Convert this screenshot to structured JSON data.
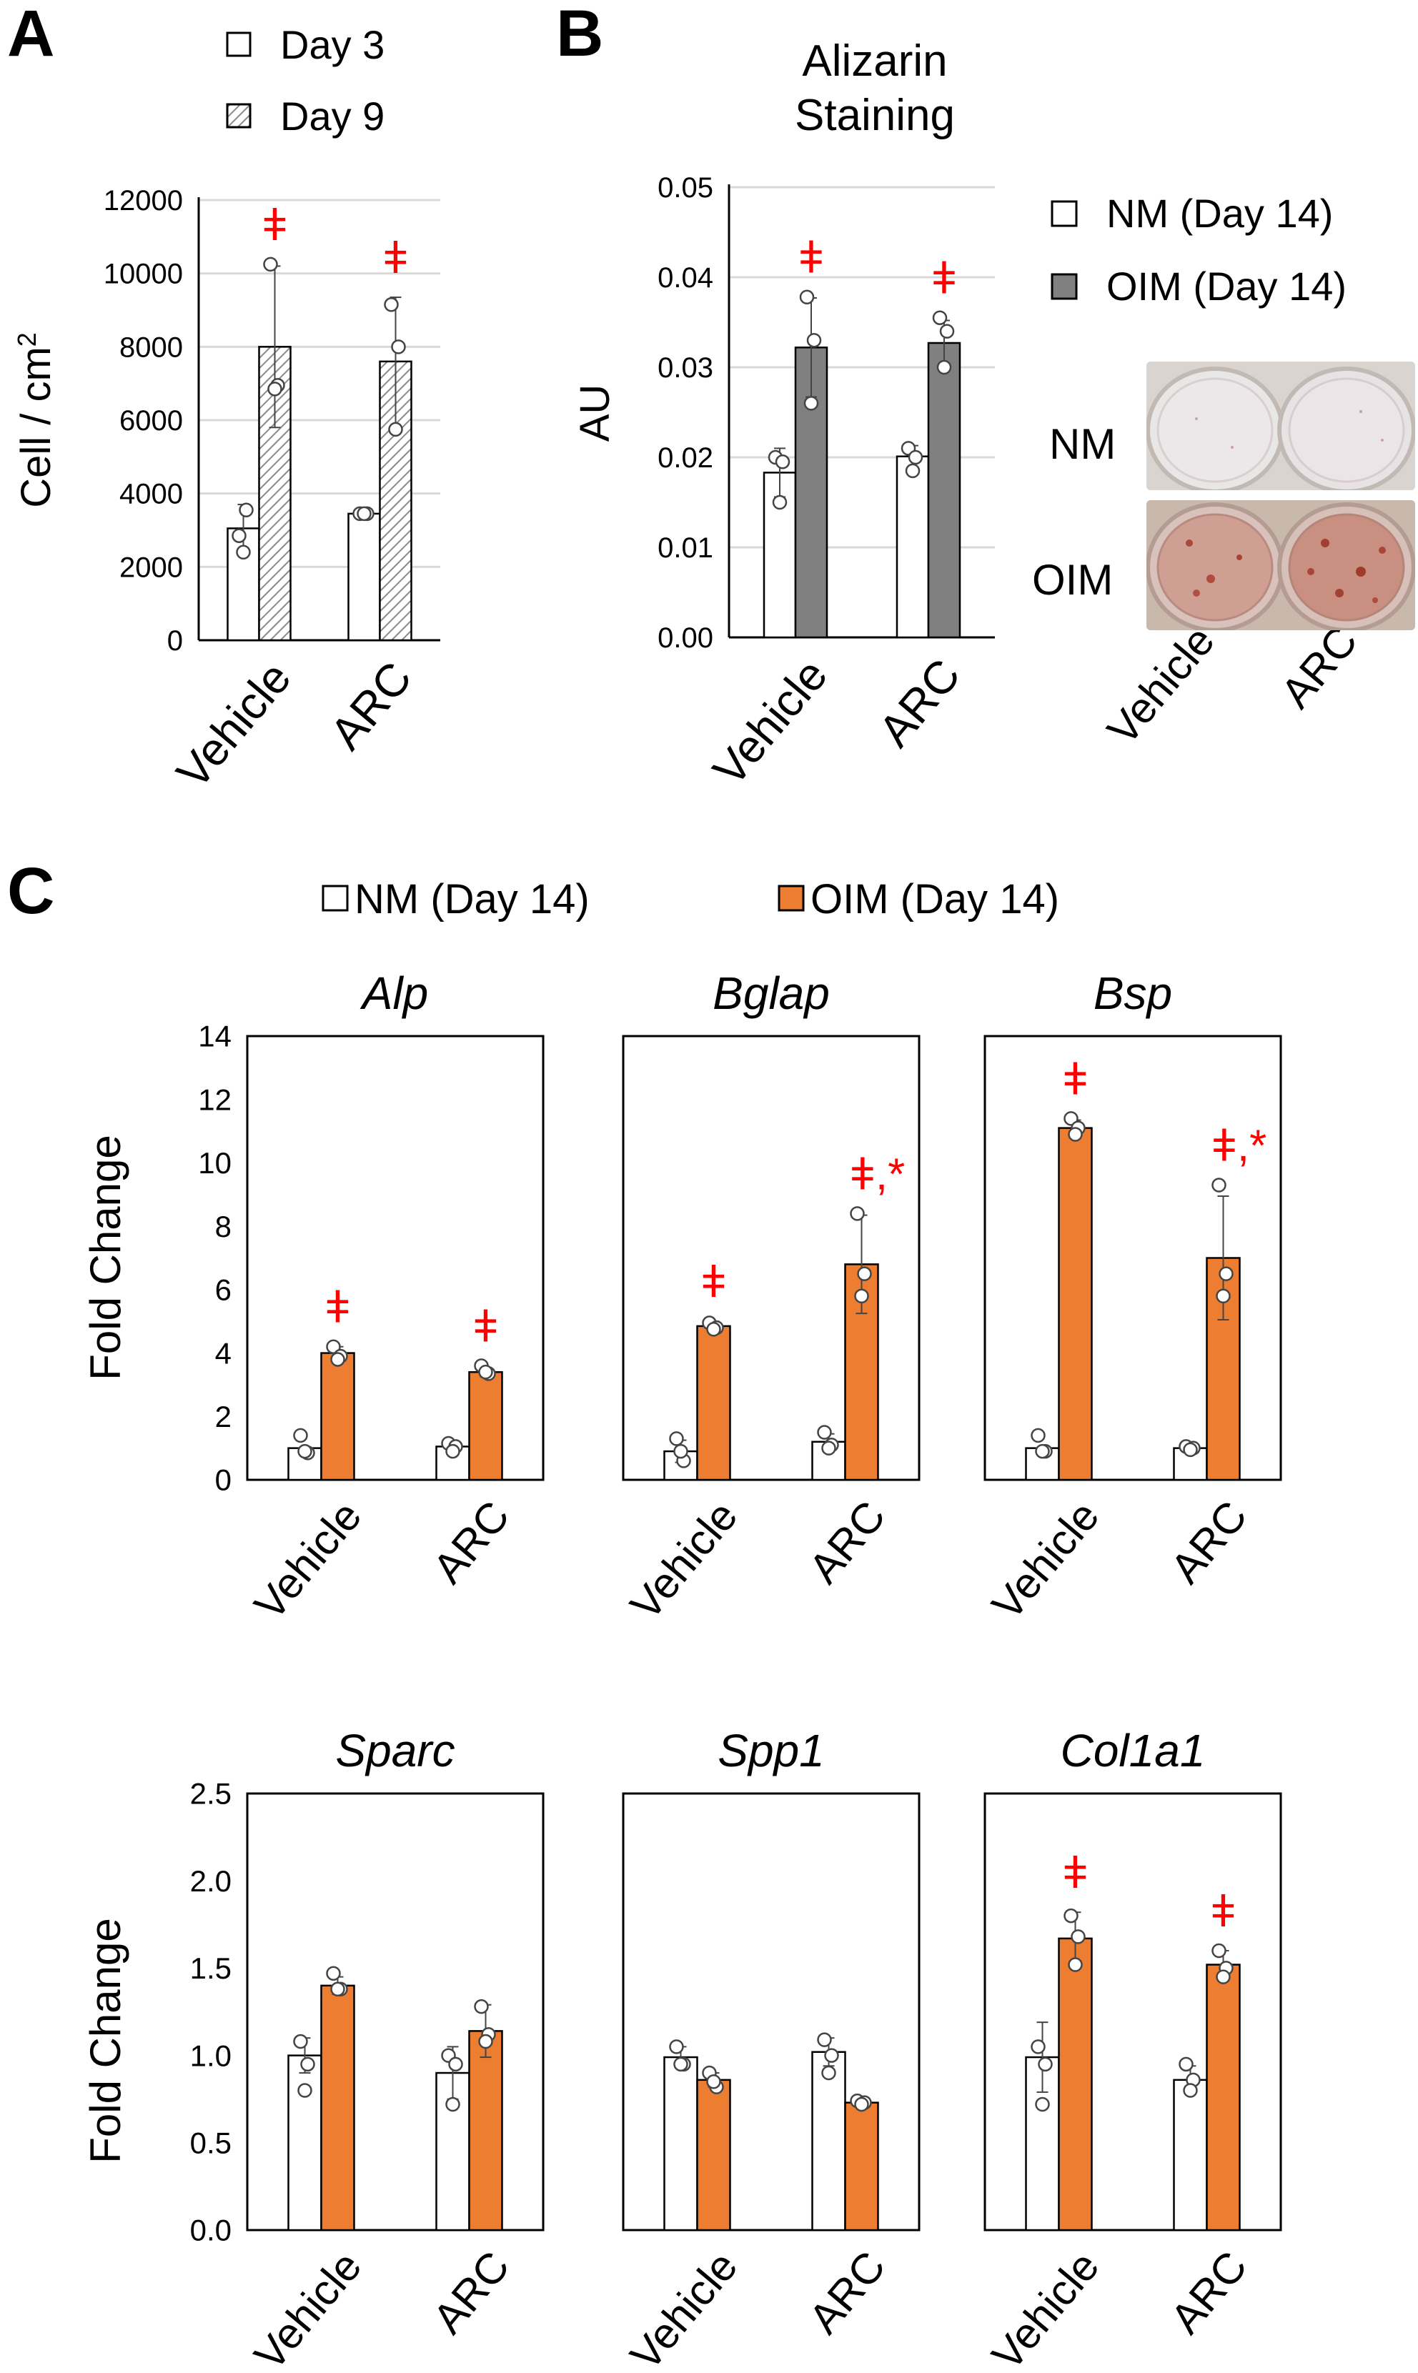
{
  "colors": {
    "nm": "#ffffff",
    "day9_hatch": "#9a9a9a",
    "oim_b": "#808080",
    "oim_c": "#ed7d31",
    "significance": "#ff0000",
    "axis": "#000000",
    "grid": "#d9d9d9"
  },
  "panels": [
    {
      "letter": "A"
    },
    {
      "letter": "B"
    },
    {
      "letter": "C"
    }
  ],
  "legend_a": [
    "Day 3",
    "Day 9"
  ],
  "legend_b": [
    "NM (Day 14)",
    "OIM (Day 14)"
  ],
  "legend_c": [
    "NM (Day 14)",
    "OIM (Day 14)"
  ],
  "photo": {
    "row_labels": [
      "NM",
      "OIM"
    ],
    "col_labels": [
      "Vehicle",
      "ARC"
    ]
  },
  "chart_data": [
    {
      "id": "A",
      "type": "bar",
      "title": "",
      "ylabel": "Cell / cm²",
      "ylim": [
        0,
        12000
      ],
      "yticks": [
        "0",
        "2000",
        "4000",
        "6000",
        "8000",
        "10000",
        "12000"
      ],
      "grid": true,
      "categories": [
        "Vehicle",
        "ARC"
      ],
      "series": [
        {
          "name": "Day 3",
          "fill": "white",
          "values": [
            3050,
            3450
          ],
          "err": [
            650,
            100
          ],
          "points": [
            [
              2850,
              3550,
              2400
            ],
            [
              3450,
              3450,
              3450
            ]
          ]
        },
        {
          "name": "Day 9",
          "fill": "hatch",
          "values": [
            8000,
            7600
          ],
          "err": [
            2200,
            1750
          ],
          "points": [
            [
              10250,
              6950,
              6850
            ],
            [
              9150,
              8000,
              5750
            ]
          ]
        }
      ],
      "annotations": [
        {
          "category": 0,
          "text": "ǂ"
        },
        {
          "category": 1,
          "text": "ǂ"
        }
      ]
    },
    {
      "id": "B",
      "type": "bar",
      "title": "Alizarin Staining",
      "ylabel": "AU",
      "ylim": [
        0,
        0.05
      ],
      "yticks": [
        "0.00",
        "0.01",
        "0.02",
        "0.03",
        "0.04",
        "0.05"
      ],
      "grid": true,
      "categories": [
        "Vehicle",
        "ARC"
      ],
      "series": [
        {
          "name": "NM (Day 14)",
          "fill": "white",
          "values": [
            0.0183,
            0.0201
          ],
          "err": [
            0.0027,
            0.0012
          ],
          "points": [
            [
              0.02,
              0.0195,
              0.015
            ],
            [
              0.021,
              0.02,
              0.0185
            ]
          ]
        },
        {
          "name": "OIM (Day 14)",
          "fill": "gray",
          "values": [
            0.0322,
            0.0327
          ],
          "err": [
            0.0055,
            0.0025
          ],
          "points": [
            [
              0.0378,
              0.033,
              0.026
            ],
            [
              0.0355,
              0.034,
              0.03
            ]
          ]
        }
      ],
      "annotations": [
        {
          "category": 0,
          "text": "ǂ"
        },
        {
          "category": 1,
          "text": "ǂ"
        }
      ]
    },
    {
      "id": "Alp",
      "type": "bar",
      "title": "Alp",
      "ylabel": "Fold Change",
      "ylim": [
        0,
        14
      ],
      "yticks": [
        "0",
        "2",
        "4",
        "6",
        "8",
        "10",
        "12",
        "14"
      ],
      "grid": false,
      "categories": [
        "Vehicle",
        "ARC"
      ],
      "series": [
        {
          "name": "NM (Day 14)",
          "fill": "white",
          "values": [
            1.0,
            1.05
          ],
          "err": [
            0,
            0.1
          ],
          "points": [
            [
              1.4,
              0.85,
              0.9
            ],
            [
              1.15,
              1.05,
              0.9
            ]
          ]
        },
        {
          "name": "OIM (Day 14)",
          "fill": "orange",
          "values": [
            4.0,
            3.4
          ],
          "err": [
            0.2,
            0.15
          ],
          "points": [
            [
              4.2,
              3.9,
              3.8
            ],
            [
              3.6,
              3.35,
              3.4
            ]
          ]
        }
      ],
      "annotations": [
        {
          "category": 0,
          "text": "ǂ"
        },
        {
          "category": 1,
          "text": "ǂ"
        }
      ]
    },
    {
      "id": "Bglap",
      "type": "bar",
      "title": "Bglap",
      "ylabel": "",
      "ylim": [
        0,
        14
      ],
      "yticks": [],
      "grid": false,
      "categories": [
        "Vehicle",
        "ARC"
      ],
      "series": [
        {
          "name": "NM (Day 14)",
          "fill": "white",
          "values": [
            0.9,
            1.2
          ],
          "err": [
            0.35,
            0.25
          ],
          "points": [
            [
              1.3,
              0.6,
              0.9
            ],
            [
              1.5,
              1.1,
              1.0
            ]
          ]
        },
        {
          "name": "OIM (Day 14)",
          "fill": "orange",
          "values": [
            4.85,
            6.8
          ],
          "err": [
            0.15,
            1.55
          ],
          "points": [
            [
              4.95,
              4.8,
              4.75
            ],
            [
              8.4,
              6.5,
              5.8
            ]
          ]
        }
      ],
      "annotations": [
        {
          "category": 0,
          "text": "ǂ"
        },
        {
          "category": 1,
          "text": "ǂ,*"
        }
      ]
    },
    {
      "id": "Bsp",
      "type": "bar",
      "title": "Bsp",
      "ylabel": "",
      "ylim": [
        0,
        14
      ],
      "yticks": [],
      "grid": false,
      "categories": [
        "Vehicle",
        "ARC"
      ],
      "series": [
        {
          "name": "NM (Day 14)",
          "fill": "white",
          "values": [
            1.0,
            1.0
          ],
          "err": [
            0,
            0.05
          ],
          "points": [
            [
              1.4,
              0.9,
              0.9
            ],
            [
              1.05,
              1.0,
              0.95
            ]
          ]
        },
        {
          "name": "OIM (Day 14)",
          "fill": "orange",
          "values": [
            11.1,
            7.0
          ],
          "err": [
            0.25,
            1.95
          ],
          "points": [
            [
              11.4,
              11.1,
              10.9
            ],
            [
              9.3,
              6.5,
              5.8
            ]
          ]
        }
      ],
      "annotations": [
        {
          "category": 0,
          "text": "ǂ"
        },
        {
          "category": 1,
          "text": "ǂ,*"
        }
      ]
    },
    {
      "id": "Sparc",
      "type": "bar",
      "title": "Sparc",
      "ylabel": "Fold Change",
      "ylim": [
        0,
        2.5
      ],
      "yticks": [
        "0.0",
        "0.5",
        "1.0",
        "1.5",
        "2.0",
        "2.5"
      ],
      "grid": false,
      "categories": [
        "Vehicle",
        "ARC"
      ],
      "series": [
        {
          "name": "NM (Day 14)",
          "fill": "white",
          "values": [
            1.0,
            0.9
          ],
          "err": [
            0.1,
            0.15
          ],
          "points": [
            [
              1.08,
              0.95,
              0.8
            ],
            [
              1.0,
              0.95,
              0.72
            ]
          ]
        },
        {
          "name": "OIM (Day 14)",
          "fill": "orange",
          "values": [
            1.4,
            1.14
          ],
          "err": [
            0.05,
            0.15
          ],
          "points": [
            [
              1.47,
              1.38,
              1.38
            ],
            [
              1.28,
              1.12,
              1.08
            ]
          ]
        }
      ],
      "annotations": []
    },
    {
      "id": "Spp1",
      "type": "bar",
      "title": "Spp1",
      "ylabel": "",
      "ylim": [
        0,
        2.5
      ],
      "yticks": [],
      "grid": false,
      "categories": [
        "Vehicle",
        "ARC"
      ],
      "series": [
        {
          "name": "NM (Day 14)",
          "fill": "white",
          "values": [
            0.99,
            1.02
          ],
          "err": [
            0.06,
            0.08
          ],
          "points": [
            [
              1.05,
              0.95,
              0.95
            ],
            [
              1.09,
              1.0,
              0.9
            ]
          ]
        },
        {
          "name": "OIM (Day 14)",
          "fill": "orange",
          "values": [
            0.86,
            0.73
          ],
          "err": [
            0.04,
            0.02
          ],
          "points": [
            [
              0.9,
              0.82,
              0.85
            ],
            [
              0.74,
              0.73,
              0.72
            ]
          ]
        }
      ],
      "annotations": []
    },
    {
      "id": "Col1a1",
      "type": "bar",
      "title": "Col1a1",
      "ylabel": "",
      "ylim": [
        0,
        2.5
      ],
      "yticks": [],
      "grid": false,
      "categories": [
        "Vehicle",
        "ARC"
      ],
      "series": [
        {
          "name": "NM (Day 14)",
          "fill": "white",
          "values": [
            0.99,
            0.86
          ],
          "err": [
            0.2,
            0.08
          ],
          "points": [
            [
              1.05,
              0.95,
              0.72
            ],
            [
              0.95,
              0.86,
              0.8
            ]
          ]
        },
        {
          "name": "OIM (Day 14)",
          "fill": "orange",
          "values": [
            1.67,
            1.52
          ],
          "err": [
            0.15,
            0.08
          ],
          "points": [
            [
              1.8,
              1.68,
              1.52
            ],
            [
              1.6,
              1.5,
              1.45
            ]
          ]
        }
      ],
      "annotations": [
        {
          "category": 0,
          "text": "ǂ"
        },
        {
          "category": 1,
          "text": "ǂ"
        }
      ]
    }
  ]
}
